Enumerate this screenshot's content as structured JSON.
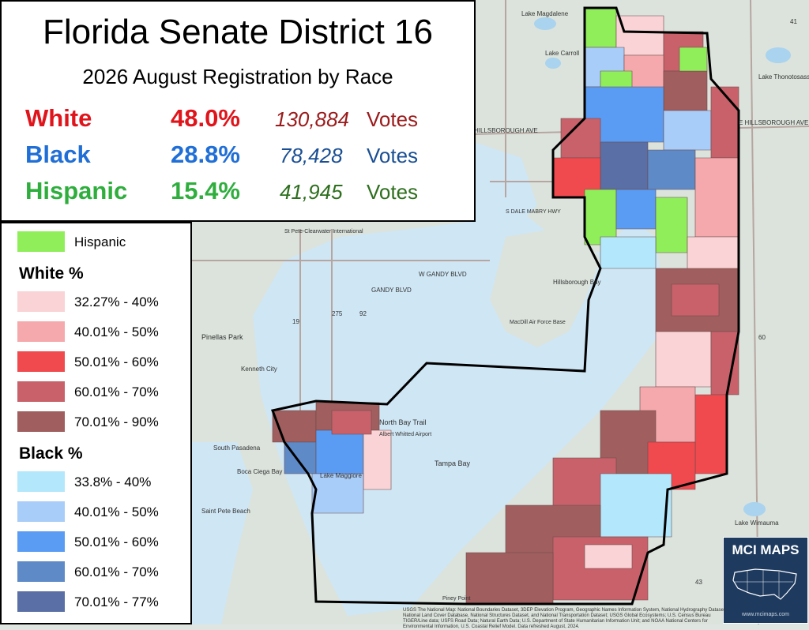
{
  "title": "Florida Senate District 16",
  "subtitle": "2026 August Registration by Race",
  "stats": [
    {
      "label": "White",
      "pct": "48.0%",
      "votes": "130,884",
      "word": "Votes",
      "color": "#e0141b",
      "votes_color": "#9b1b1b"
    },
    {
      "label": "Black",
      "pct": "28.8%",
      "votes": "78,428",
      "word": "Votes",
      "color": "#1f6fd6",
      "votes_color": "#1a4f93"
    },
    {
      "label": "Hispanic",
      "pct": "15.4%",
      "votes": "41,945",
      "word": "Votes",
      "color": "#2fae3e",
      "votes_color": "#2e6f1e"
    }
  ],
  "legend": {
    "hispanic": {
      "label": "Hispanic",
      "color": "#90ee5a"
    },
    "white_title": "White  %",
    "white": [
      {
        "label": "32.27% - 40%",
        "color": "#f9d3d5"
      },
      {
        "label": "40.01% - 50%",
        "color": "#f6a9ad"
      },
      {
        "label": "50.01% - 60%",
        "color": "#f04a4f"
      },
      {
        "label": "60.01% - 70%",
        "color": "#c8616a"
      },
      {
        "label": "70.01% - 90%",
        "color": "#a05e5e"
      }
    ],
    "black_title": "Black  %",
    "black": [
      {
        "label": "33.8% - 40%",
        "color": "#b3e7fb"
      },
      {
        "label": "40.01% - 50%",
        "color": "#a9cdf9"
      },
      {
        "label": "50.01% - 60%",
        "color": "#5a9cf3"
      },
      {
        "label": "60.01% - 70%",
        "color": "#5e8bc8"
      },
      {
        "label": "70.01% - 77%",
        "color": "#5a6fa5"
      }
    ]
  },
  "map_labels": {
    "north_bay_trail": "North Bay Trail",
    "albert_whitted": "Albert Whitted Airport",
    "tampa_bay": "Tampa Bay",
    "hillsborough_bay": "Hillsborough Bay",
    "pinellas_park": "Pinellas Park",
    "kenneth_city": "Kenneth City",
    "st_pete_beach": "Saint Pete Beach",
    "south_pasadena": "South Pasadena",
    "boca_ciega_bay": "Boca Ciega Bay",
    "lake_maggiore": "Lake Maggiore",
    "gandy_blvd": "GANDY BLVD",
    "w_gandy_blvd": "W GANDY BLVD",
    "hillsborough_ave": "HILLSBOROUGH AVE",
    "e_hillsborough_ave": "E HILLSBOROUGH AVE",
    "lake_magdalene": "Lake Magdalene",
    "lake_carroll": "Lake Carroll",
    "lake_thonotosassa": "Lake Thonotosassa",
    "lake_wimauma": "Lake Wimauma",
    "macdill": "MacDill Air Force Base",
    "st_pete_clearwater": "St Pete-Clearwater International",
    "piney_point": "Piney Point",
    "dale_mabry": "S DALE MABRY HWY",
    "route_19": "19",
    "route_41": "41",
    "route_92": "92",
    "route_60": "60",
    "route_275": "275",
    "route_43": "43"
  },
  "brand": {
    "name": "MCI MAPS",
    "url": "www.mcimaps.com",
    "bg": "#1e3a5f"
  },
  "credits": "USGS The National Map: National Boundaries Dataset, 3DEP Elevation Program, Geographic Names Information System, National Hydrography Dataset, National Land Cover Database, National Structures Dataset, and National Transportation Dataset; USGS Global Ecosystems; U.S. Census Bureau TIGER/Line data; USFS Road Data; Natural Earth Data; U.S. Department of State Humanitarian Information Unit; and NOAA National Centers for Environmental Information, U.S. Coastal Relief Model. Data refreshed August, 2024.",
  "colors": {
    "water": "#cfe6f4",
    "land": "#dbe3dc",
    "boundary": "#000000"
  }
}
